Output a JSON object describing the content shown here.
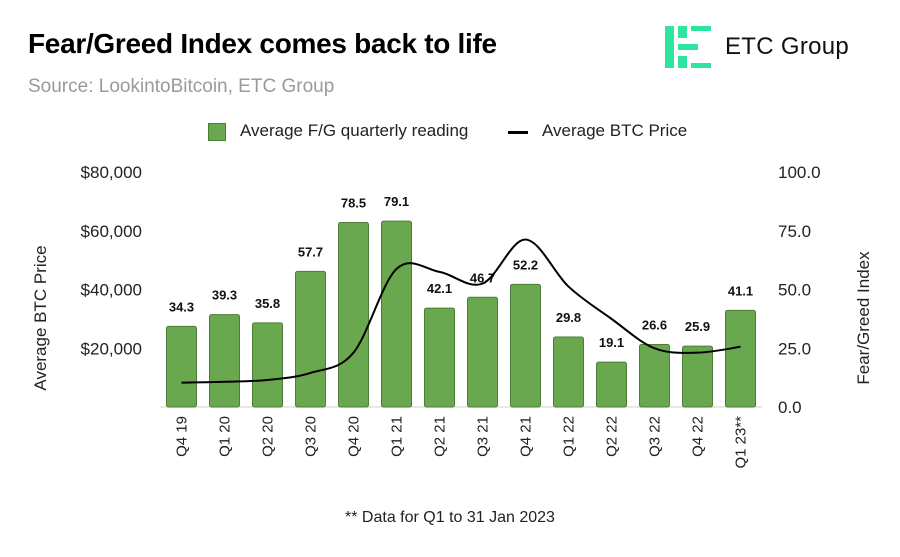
{
  "header": {
    "title": "Fear/Greed Index comes back to life",
    "subtitle": "Source: LookintoBitcoin, ETC Group"
  },
  "logo": {
    "text": "ETC Group",
    "color": "#2ee59d"
  },
  "footnote": "** Data for Q1 to 31 Jan 2023",
  "colors": {
    "bar": "#6aa84f",
    "bar_border": "#4d7d38",
    "line": "#000000"
  },
  "chart_data": {
    "type": "bar",
    "categories": [
      "Q4 19",
      "Q1 20",
      "Q2 20",
      "Q3 20",
      "Q4 20",
      "Q1 21",
      "Q2 21",
      "Q3 21",
      "Q4 21",
      "Q1 22",
      "Q2 22",
      "Q3 22",
      "Q4 22",
      "Q1 23**"
    ],
    "series": [
      {
        "name": "Average F/G quarterly reading",
        "type": "bar",
        "axis": "right",
        "values": [
          34.3,
          39.3,
          35.8,
          57.7,
          78.5,
          79.1,
          42.1,
          46.7,
          52.2,
          29.8,
          19.1,
          26.6,
          25.9,
          41.1
        ],
        "labels": [
          "34.3",
          "39.3",
          "35.8",
          "57.7",
          "78.5",
          "79.1",
          "42.1",
          "46.7",
          "52.2",
          "29.8",
          "19.1",
          "26.6",
          "25.9",
          "41.1"
        ]
      },
      {
        "name": "Average BTC Price",
        "type": "line",
        "axis": "left",
        "values": [
          8300,
          8600,
          9200,
          11600,
          18500,
          47000,
          46000,
          42000,
          57000,
          41000,
          30000,
          20000,
          18500,
          20500
        ]
      }
    ],
    "left_axis": {
      "label": "Average BTC Price",
      "range": [
        0,
        80000
      ],
      "ticks": [
        {
          "value": 20000,
          "label": "$20,000"
        },
        {
          "value": 40000,
          "label": "$40,000"
        },
        {
          "value": 60000,
          "label": "$60,000"
        },
        {
          "value": 80000,
          "label": "$80,000"
        }
      ]
    },
    "right_axis": {
      "label": "Fear/Greed Index",
      "range": [
        0,
        100
      ],
      "ticks": [
        {
          "value": 0,
          "label": "0.0"
        },
        {
          "value": 25,
          "label": "25.0"
        },
        {
          "value": 50,
          "label": "50.0"
        },
        {
          "value": 75,
          "label": "75.0"
        },
        {
          "value": 100,
          "label": "100.0"
        }
      ]
    },
    "legend_position": "top-center",
    "grid": false
  }
}
